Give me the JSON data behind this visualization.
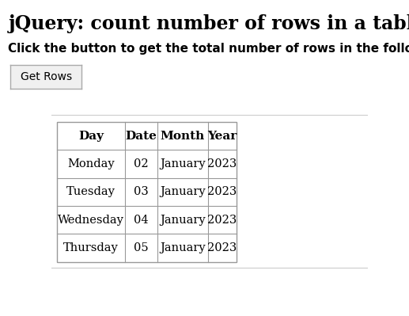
{
  "title": "jQuery: count number of rows in a table",
  "subtitle": "Click the button to get the total number of rows in the following table.",
  "button_label": "Get Rows",
  "bg_color": "#ffffff",
  "title_color": "#000000",
  "subtitle_color": "#000000",
  "table_headers": [
    "Day",
    "Date",
    "Month",
    "Year"
  ],
  "table_rows": [
    [
      "Monday",
      "02",
      "January",
      "2023"
    ],
    [
      "Tuesday",
      "03",
      "January",
      "2023"
    ],
    [
      "Wednesday",
      "04",
      "January",
      "2023"
    ],
    [
      "Thursday",
      "05",
      "January",
      "2023"
    ]
  ],
  "table_border_color": "#999999",
  "header_font_size": 11,
  "body_font_size": 10.5,
  "title_font_size": 17,
  "subtitle_font_size": 11
}
